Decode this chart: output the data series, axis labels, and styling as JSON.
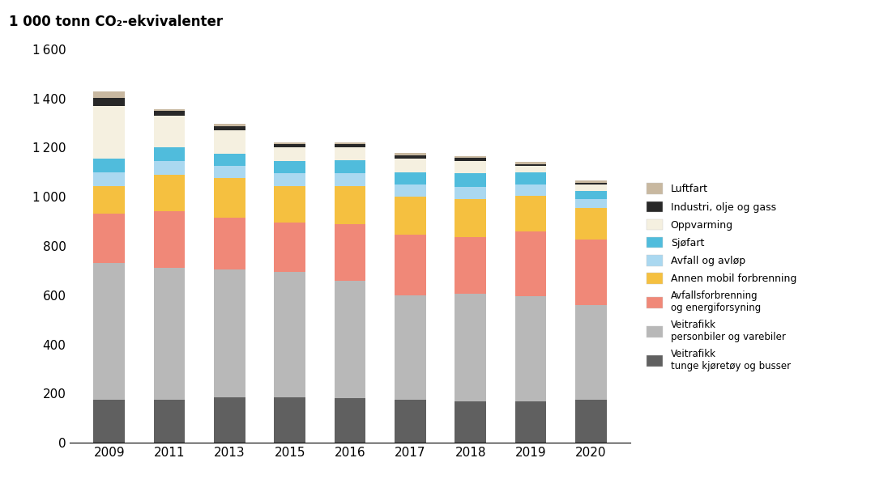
{
  "years": [
    "2009",
    "2011",
    "2013",
    "2015",
    "2016",
    "2017",
    "2018",
    "2019",
    "2020"
  ],
  "segments": {
    "veitrafikk_tunge": {
      "label": "Veitrafikk\ntunge kjøretøy og busser",
      "color": "#606060",
      "values": [
        175,
        175,
        185,
        185,
        180,
        175,
        170,
        170,
        175
      ]
    },
    "veitrafikk_person": {
      "label": "Veitrafikk\npersonbiler og varebiler",
      "color": "#b8b8b8",
      "values": [
        555,
        535,
        520,
        510,
        480,
        425,
        435,
        425,
        385
      ]
    },
    "avfallsforbrenning": {
      "label": "Avfallsforbrenning\nog energiforsyning",
      "color": "#f08878",
      "values": [
        200,
        230,
        210,
        200,
        230,
        245,
        230,
        265,
        265
      ]
    },
    "annen_mobil": {
      "label": "Annen mobil forbrenning",
      "color": "#f5c040",
      "values": [
        115,
        150,
        160,
        150,
        155,
        155,
        155,
        145,
        130
      ]
    },
    "avfall_avlop": {
      "label": "Avfall og avløp",
      "color": "#aad8f0",
      "values": [
        55,
        55,
        50,
        50,
        50,
        50,
        50,
        45,
        35
      ]
    },
    "sjofart": {
      "label": "Sjøfart",
      "color": "#50bcdc",
      "values": [
        55,
        55,
        50,
        50,
        55,
        50,
        55,
        50,
        35
      ]
    },
    "oppvarming": {
      "label": "Oppvarming",
      "color": "#f5f0e0",
      "values": [
        215,
        130,
        95,
        55,
        50,
        55,
        50,
        25,
        25
      ]
    },
    "industri": {
      "label": "Industri, olje og gass",
      "color": "#282828",
      "values": [
        32,
        18,
        18,
        14,
        14,
        14,
        12,
        8,
        8
      ]
    },
    "luftfart": {
      "label": "Luftfart",
      "color": "#c8b8a0",
      "values": [
        25,
        8,
        8,
        8,
        8,
        8,
        8,
        8,
        8
      ]
    }
  },
  "title": "1 000 tonn CO₂-ekvivalenter",
  "ylim": [
    0,
    1600
  ],
  "yticks": [
    0,
    200,
    400,
    600,
    800,
    1000,
    1200,
    1400,
    1600
  ],
  "background_color": "#ffffff",
  "bar_width": 0.52,
  "figsize": [
    10.8,
    6.08
  ],
  "dpi": 100
}
